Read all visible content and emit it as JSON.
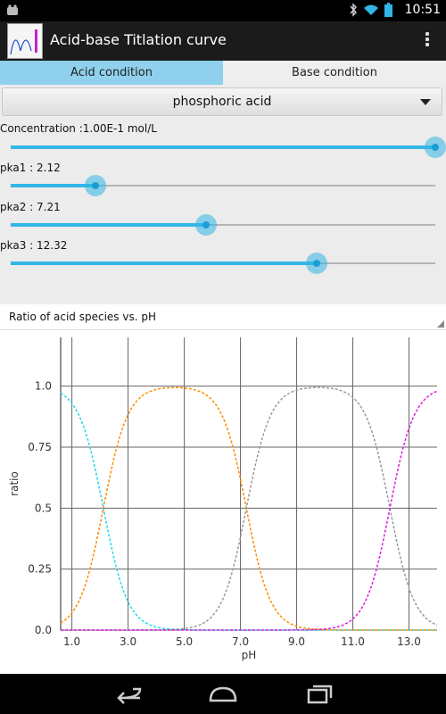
{
  "status": {
    "time": "10:51"
  },
  "app": {
    "title": "Acid-base Titlation curve"
  },
  "tabs": [
    {
      "label": "Acid condition",
      "active": true
    },
    {
      "label": "Base condition",
      "active": false
    }
  ],
  "spinner": {
    "selected": "phosphoric acid"
  },
  "sliders": {
    "concentration": {
      "label": "Concentration :1.00E-1 mol/L",
      "fraction": 1.0
    },
    "pka1": {
      "label": "pka1 : 2.12",
      "fraction": 0.2
    },
    "pka2": {
      "label": "pka2 : 7.21",
      "fraction": 0.46
    },
    "pka3": {
      "label": "pka3 : 12.32",
      "fraction": 0.72
    }
  },
  "chart_header": {
    "title": "Ratio of acid species vs. pH"
  },
  "chart_data": {
    "type": "line",
    "xlabel": "pH",
    "ylabel": "ratio",
    "xlim": [
      0.6,
      14.0
    ],
    "ylim": [
      0.0,
      1.2
    ],
    "xticks": [
      "1.0",
      "3.0",
      "5.0",
      "7.0",
      "9.0",
      "11.0",
      "13.0"
    ],
    "yticks": [
      "0.0",
      "0.25",
      "0.5",
      "0.75",
      "1.0"
    ],
    "pka": [
      2.12,
      7.21,
      12.32
    ],
    "grid": true,
    "series_colors": [
      "#22d8e8",
      "#ff8c00",
      "#9a9a9a",
      "#e01ae0"
    ],
    "series": [
      {
        "x": [
          0.6,
          1.0,
          1.5,
          2.12,
          3.0,
          4.0,
          5.0,
          6.0,
          7.0,
          8.0,
          9.0,
          10.0,
          11.0,
          12.0,
          13.0,
          14.0
        ],
        "values": [
          0.97,
          0.93,
          0.81,
          0.5,
          0.12,
          0.01,
          0.0,
          0.0,
          0.0,
          0.0,
          0.0,
          0.0,
          0.0,
          0.0,
          0.0,
          0.0
        ]
      },
      {
        "x": [
          0.6,
          1.0,
          1.5,
          2.12,
          3.0,
          4.0,
          5.0,
          6.0,
          7.21,
          8.0,
          9.0,
          10.0,
          11.0,
          12.0,
          13.0,
          14.0
        ],
        "values": [
          0.03,
          0.07,
          0.19,
          0.5,
          0.88,
          0.99,
          0.99,
          0.94,
          0.5,
          0.14,
          0.02,
          0.0,
          0.0,
          0.0,
          0.0,
          0.0
        ]
      },
      {
        "x": [
          0.6,
          1.0,
          2.0,
          3.0,
          4.0,
          5.0,
          6.0,
          7.21,
          8.0,
          9.0,
          10.0,
          11.0,
          12.32,
          13.0,
          14.0
        ],
        "values": [
          0.0,
          0.0,
          0.0,
          0.0,
          0.0,
          0.01,
          0.06,
          0.5,
          0.86,
          0.98,
          0.99,
          0.95,
          0.5,
          0.17,
          0.02
        ]
      },
      {
        "x": [
          0.6,
          9.0,
          10.0,
          11.0,
          11.5,
          12.32,
          13.0,
          13.5,
          14.0
        ],
        "values": [
          0.0,
          0.0,
          0.01,
          0.05,
          0.13,
          0.5,
          0.83,
          0.94,
          0.98
        ]
      }
    ]
  }
}
